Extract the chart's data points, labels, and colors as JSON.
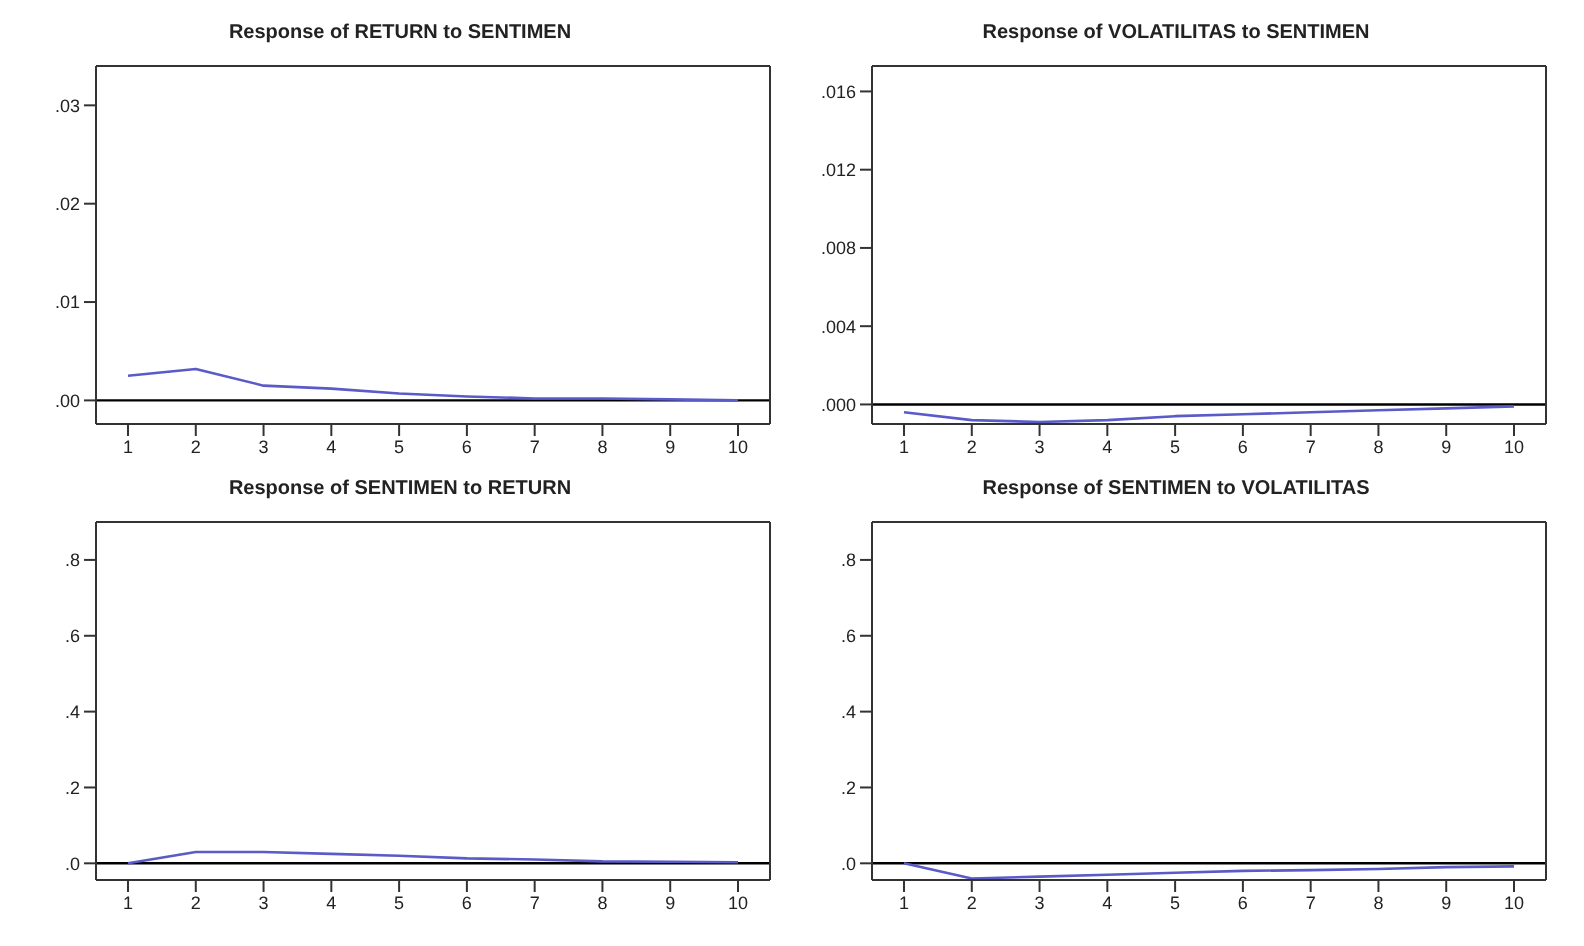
{
  "chart_data": [
    {
      "type": "line",
      "title": "Response of RETURN to SENTIMEN",
      "categories": [
        "1",
        "2",
        "3",
        "4",
        "5",
        "6",
        "7",
        "8",
        "9",
        "10"
      ],
      "series": [
        {
          "color": "#5a5ac8",
          "values": [
            0.0025,
            0.0032,
            0.0015,
            0.0012,
            0.0007,
            0.0004,
            0.0002,
            0.0002,
            0.0001,
            0.0
          ]
        }
      ],
      "ylim": [
        -0.0024,
        0.034
      ],
      "yticks": [
        {
          "value": 0,
          "label": ".00"
        },
        {
          "value": 0.01,
          "label": ".01"
        },
        {
          "value": 0.02,
          "label": ".02"
        },
        {
          "value": 0.03,
          "label": ".03"
        }
      ],
      "ref_lines": [
        {
          "axis": "y",
          "value": 0,
          "color": "#000000"
        }
      ],
      "grid": false,
      "legend": false
    },
    {
      "type": "line",
      "title": "Response of VOLATILITAS to SENTIMEN",
      "categories": [
        "1",
        "2",
        "3",
        "4",
        "5",
        "6",
        "7",
        "8",
        "9",
        "10"
      ],
      "series": [
        {
          "color": "#5a5ac8",
          "values": [
            -0.0004,
            -0.0008,
            -0.0009,
            -0.0008,
            -0.0006,
            -0.0005,
            -0.0004,
            -0.0003,
            -0.0002,
            -0.0001
          ]
        }
      ],
      "ylim": [
        -0.001,
        0.0173
      ],
      "yticks": [
        {
          "value": 0,
          "label": ".000"
        },
        {
          "value": 0.004,
          "label": ".004"
        },
        {
          "value": 0.008,
          "label": ".008"
        },
        {
          "value": 0.012,
          "label": ".012"
        },
        {
          "value": 0.016,
          "label": ".016"
        }
      ],
      "ref_lines": [
        {
          "axis": "y",
          "value": 0,
          "color": "#000000"
        }
      ],
      "grid": false,
      "legend": false
    },
    {
      "type": "line",
      "title": "Response of SENTIMEN to RETURN",
      "categories": [
        "1",
        "2",
        "3",
        "4",
        "5",
        "6",
        "7",
        "8",
        "9",
        "10"
      ],
      "series": [
        {
          "color": "#5a5ac8",
          "values": [
            0.0,
            0.03,
            0.03,
            0.025,
            0.02,
            0.013,
            0.01,
            0.005,
            0.004,
            0.003
          ]
        }
      ],
      "ylim": [
        -0.044,
        0.9
      ],
      "yticks": [
        {
          "value": 0,
          "label": ".0"
        },
        {
          "value": 0.2,
          "label": ".2"
        },
        {
          "value": 0.4,
          "label": ".4"
        },
        {
          "value": 0.6,
          "label": ".6"
        },
        {
          "value": 0.8,
          "label": ".8"
        }
      ],
      "ref_lines": [
        {
          "axis": "y",
          "value": 0,
          "color": "#000000"
        }
      ],
      "grid": false,
      "legend": false
    },
    {
      "type": "line",
      "title": "Response of SENTIMEN to VOLATILITAS",
      "categories": [
        "1",
        "2",
        "3",
        "4",
        "5",
        "6",
        "7",
        "8",
        "9",
        "10"
      ],
      "series": [
        {
          "color": "#5a5ac8",
          "values": [
            0.0,
            -0.04,
            -0.035,
            -0.03,
            -0.025,
            -0.02,
            -0.018,
            -0.015,
            -0.01,
            -0.008
          ]
        }
      ],
      "ylim": [
        -0.044,
        0.9
      ],
      "yticks": [
        {
          "value": 0,
          "label": ".0"
        },
        {
          "value": 0.2,
          "label": ".2"
        },
        {
          "value": 0.4,
          "label": ".4"
        },
        {
          "value": 0.6,
          "label": ".6"
        },
        {
          "value": 0.8,
          "label": ".8"
        }
      ],
      "ref_lines": [
        {
          "axis": "y",
          "value": 0,
          "color": "#000000"
        }
      ],
      "grid": false,
      "legend": false
    }
  ]
}
